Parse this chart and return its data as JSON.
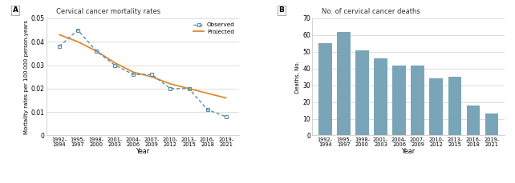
{
  "panel_A_title": "Cervical cancer mortality rates",
  "panel_B_title": "No. of cervical cancer deaths",
  "categories": [
    "1992-\n1994",
    "1995-\n1997",
    "1998-\n2000",
    "2001-\n2003",
    "2004-\n2006",
    "2007-\n2009",
    "2010-\n2012",
    "2013-\n2015",
    "2016-\n2018",
    "2019-\n2021"
  ],
  "x_positions": [
    0,
    1,
    2,
    3,
    4,
    5,
    6,
    7,
    8,
    9
  ],
  "observed_y": [
    0.038,
    0.045,
    0.036,
    0.03,
    0.026,
    0.026,
    0.02,
    0.02,
    0.011,
    0.008
  ],
  "projected_y": [
    0.043,
    0.04,
    0.036,
    0.031,
    0.027,
    0.025,
    0.022,
    0.02,
    0.018,
    0.016
  ],
  "deaths_y": [
    55,
    62,
    51,
    46,
    42,
    42,
    34,
    35,
    18,
    13
  ],
  "observed_color": "#5b8fa8",
  "projected_color": "#e08b2c",
  "bar_color": "#7aa5b8",
  "ylabel_A": "Mortality rates per 100 000 person-years",
  "ylabel_B": "Deaths, No.",
  "xlabel": "Year",
  "ylim_A": [
    0,
    0.05
  ],
  "ylim_B": [
    0,
    70
  ],
  "yticks_A": [
    0,
    0.01,
    0.02,
    0.03,
    0.04,
    0.05
  ],
  "yticks_A_labels": [
    "0",
    "0.01",
    "0.02",
    "0.03",
    "0.04",
    "0.05"
  ],
  "yticks_B": [
    0,
    10,
    20,
    30,
    40,
    50,
    60,
    70
  ],
  "bg_color": "#ffffff",
  "grid_color": "#d8d8d8",
  "panel_label_A": "A",
  "panel_label_B": "B"
}
